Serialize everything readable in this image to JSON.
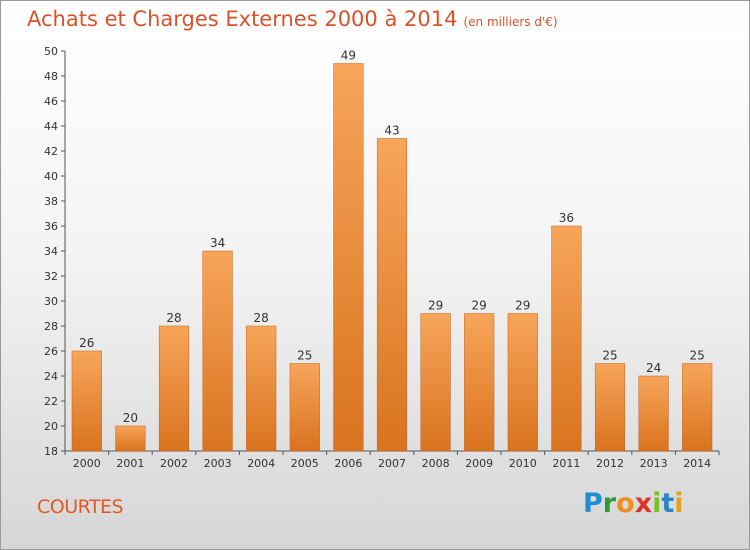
{
  "title": "Achats et Charges Externes 2000 à 2014",
  "unit": "(en milliers d'€)",
  "commune": "COURTES",
  "brand": {
    "letters": [
      "P",
      "r",
      "o",
      "x",
      "i",
      "t",
      "i"
    ],
    "colors": [
      "#1f8fcf",
      "#2e9a3c",
      "#f08c1e",
      "#d9352a",
      "#7bbf2a",
      "#2a84c9",
      "#e2a21b"
    ]
  },
  "colors": {
    "bar_light": "#f7a55a",
    "bar_dark": "#d9731f",
    "accent": "#d9532a"
  },
  "chart_data": {
    "type": "bar",
    "categories": [
      "2000",
      "2001",
      "2002",
      "2003",
      "2004",
      "2005",
      "2006",
      "2007",
      "2008",
      "2009",
      "2010",
      "2011",
      "2012",
      "2013",
      "2014"
    ],
    "values": [
      26,
      20,
      28,
      34,
      28,
      25,
      49,
      43,
      29,
      29,
      29,
      36,
      25,
      24,
      25
    ],
    "title": "Achats et Charges Externes 2000 à 2014",
    "xlabel": "",
    "ylabel": "",
    "ylim": [
      18,
      50
    ],
    "yticks": [
      18,
      20,
      22,
      24,
      26,
      28,
      30,
      32,
      34,
      36,
      38,
      40,
      42,
      44,
      46,
      48,
      50
    ],
    "grid": false,
    "data_labels": true
  }
}
